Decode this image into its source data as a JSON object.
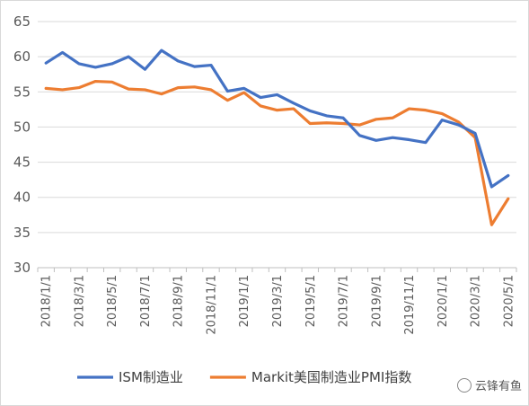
{
  "chart_data": {
    "type": "line",
    "title": "",
    "xlabel": "",
    "ylabel": "",
    "ylim": [
      30,
      65
    ],
    "yticks": [
      30,
      35,
      40,
      45,
      50,
      55,
      60,
      65
    ],
    "grid": "horizontal",
    "legend_position": "bottom",
    "x": [
      "2018/1/1",
      "2018/2/1",
      "2018/3/1",
      "2018/4/1",
      "2018/5/1",
      "2018/6/1",
      "2018/7/1",
      "2018/8/1",
      "2018/9/1",
      "2018/10/1",
      "2018/11/1",
      "2018/12/1",
      "2019/1/1",
      "2019/2/1",
      "2019/3/1",
      "2019/4/1",
      "2019/5/1",
      "2019/6/1",
      "2019/7/1",
      "2019/8/1",
      "2019/9/1",
      "2019/10/1",
      "2019/11/1",
      "2019/12/1",
      "2020/1/1",
      "2020/2/1",
      "2020/3/1",
      "2020/4/1",
      "2020/5/1"
    ],
    "x_tick_labels": [
      "2018/1/1",
      "2018/3/1",
      "2018/5/1",
      "2018/7/1",
      "2018/9/1",
      "2018/11/1",
      "2019/1/1",
      "2019/3/1",
      "2019/5/1",
      "2019/7/1",
      "2019/9/1",
      "2019/11/1",
      "2020/1/1",
      "2020/3/1",
      "2020/5/1"
    ],
    "series": [
      {
        "name": "ISM制造业",
        "color": "#4472C4",
        "values": [
          59.1,
          60.6,
          59.0,
          58.5,
          59.0,
          60.0,
          58.2,
          60.9,
          59.4,
          58.6,
          58.8,
          55.1,
          55.5,
          54.2,
          54.6,
          53.4,
          52.3,
          51.6,
          51.3,
          48.8,
          48.1,
          48.5,
          48.2,
          47.8,
          51.0,
          50.3,
          49.1,
          41.5,
          43.1
        ]
      },
      {
        "name": "Markit美国制造业PMI指数",
        "color": "#ED7D31",
        "values": [
          55.5,
          55.3,
          55.6,
          56.5,
          56.4,
          55.4,
          55.3,
          54.7,
          55.6,
          55.7,
          55.3,
          53.8,
          54.9,
          53.0,
          52.4,
          52.6,
          50.5,
          50.6,
          50.5,
          50.3,
          51.1,
          51.3,
          52.6,
          52.4,
          51.9,
          50.7,
          48.5,
          36.1,
          39.8
        ]
      }
    ]
  },
  "watermark": {
    "text": "云锋有鱼",
    "icon": "wechat-official-account-icon"
  }
}
